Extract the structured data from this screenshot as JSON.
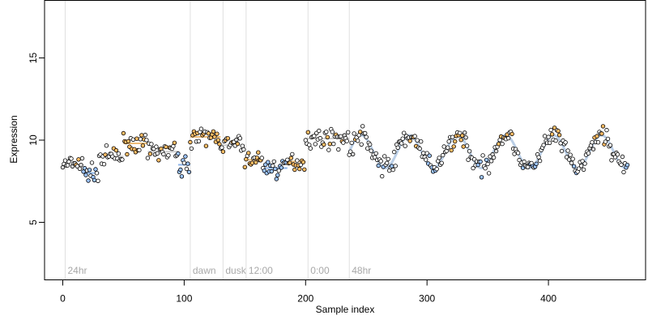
{
  "chart_data": {
    "type": "scatter",
    "xlabel": "Sample index",
    "ylabel": "Expression",
    "xlim": [
      -15,
      480
    ],
    "ylim": [
      1.5,
      18.5
    ],
    "x_ticks": [
      0,
      100,
      200,
      300,
      400
    ],
    "y_ticks": [
      5,
      10,
      15
    ],
    "grid": false,
    "legend": "none",
    "colors": {
      "low_fill": "#9ec6ff",
      "high_fill": "#ffbe66",
      "mid_fill": "#d9d9d9",
      "steady_fill": "#ffffff",
      "low_line": "#5f97e0",
      "high_line": "#e8a040",
      "marker_line": "#e0e0e0",
      "marker_text": "#a8a8a8"
    },
    "markers": [
      {
        "x": 2,
        "label": "24hr"
      },
      {
        "x": 105,
        "label": "dawn"
      },
      {
        "x": 132,
        "label": "dusk"
      },
      {
        "x": 151,
        "label": "12:00"
      },
      {
        "x": 202,
        "label": "0:00"
      },
      {
        "x": 236,
        "label": "48hr"
      }
    ],
    "segments": [
      {
        "x0": 0,
        "x1": 17,
        "level": 8.5,
        "kind": "steady"
      },
      {
        "x0": 17,
        "x1": 30,
        "level": 8.0,
        "kind": "low"
      },
      {
        "x0": 30,
        "x1": 50,
        "level": 9.0,
        "kind": "steady"
      },
      {
        "x0": 50,
        "x1": 70,
        "level": 9.8,
        "kind": "high"
      },
      {
        "x0": 70,
        "x1": 95,
        "level": 9.3,
        "kind": "steady"
      },
      {
        "x0": 95,
        "x1": 105,
        "level": 8.5,
        "kind": "low"
      },
      {
        "x0": 105,
        "x1": 130,
        "level": 10.2,
        "kind": "high"
      },
      {
        "x0": 130,
        "x1": 150,
        "level": 9.7,
        "kind": "steady"
      },
      {
        "x0": 150,
        "x1": 165,
        "level": 8.8,
        "kind": "high"
      },
      {
        "x0": 165,
        "x1": 185,
        "level": 8.3,
        "kind": "low"
      },
      {
        "x0": 185,
        "x1": 200,
        "level": 8.7,
        "kind": "high"
      },
      {
        "x0": 200,
        "x1": 236,
        "level": 10.1,
        "kind": "steady"
      },
      {
        "x0": 236,
        "x1": 465,
        "level": 9.3,
        "kind": "wave"
      }
    ]
  }
}
